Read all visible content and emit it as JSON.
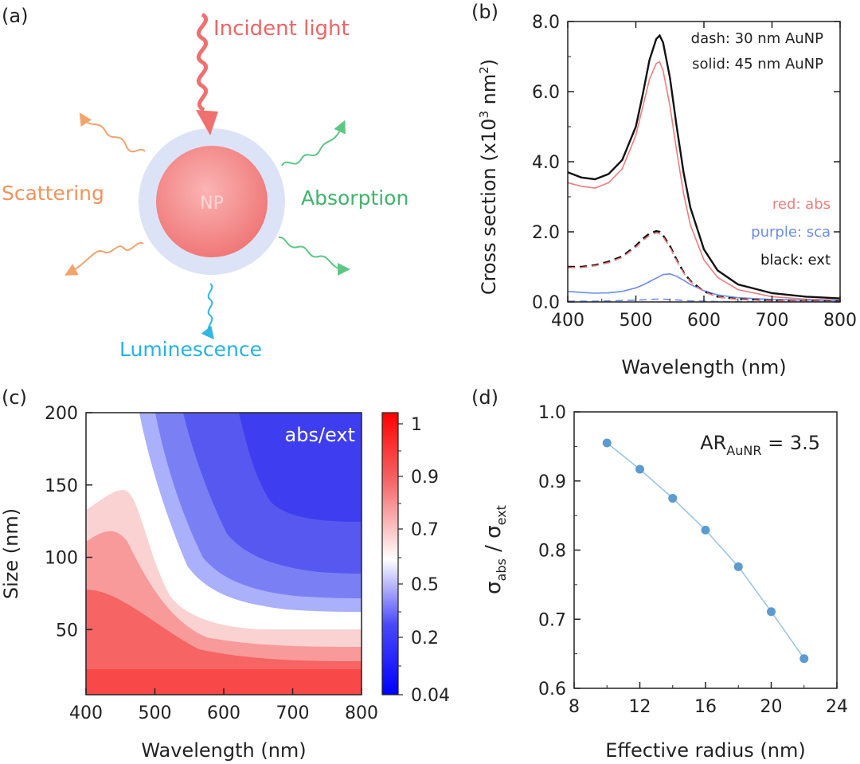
{
  "figure": {
    "panel_a": {
      "letter": "(a)",
      "incident": "Incident light",
      "scattering": "Scattering",
      "absorption": "Absorption",
      "luminescence": "Luminescence",
      "np": "NP"
    },
    "panel_b": {
      "letter": "(b)"
    },
    "panel_c": {
      "letter": "(c)"
    },
    "panel_d": {
      "letter": "(d)"
    }
  },
  "chart_data": [
    {
      "panel": "b",
      "type": "line",
      "xlabel": "Wavelength (nm)",
      "ylabel": "Cross section (x10",
      "ylabel_sup": "3",
      "ylabel_tail": " nm",
      "ylabel_sup2": "2",
      "ylabel_end": ")",
      "xlim": [
        400,
        800
      ],
      "ylim": [
        0,
        8
      ],
      "xticks": [
        400,
        500,
        600,
        700,
        800
      ],
      "xtick_labels": [
        "400",
        "500",
        "600",
        "700",
        "800"
      ],
      "yticks": [
        0,
        2,
        4,
        6,
        8
      ],
      "ytick_labels": [
        "0.0",
        "2.0",
        "4.0",
        "6.0",
        "8.0"
      ],
      "annotations": {
        "dash": "dash: 30 nm AuNP",
        "solid": "solid: 45 nm AuNP",
        "red": "red: abs",
        "purple": "purple: sca",
        "black": "black: ext"
      },
      "colors": {
        "abs": "#f07c7c",
        "sca": "#6a8de8",
        "ext": "#111111"
      },
      "x": [
        400,
        420,
        440,
        460,
        480,
        500,
        510,
        520,
        530,
        535,
        540,
        550,
        560,
        570,
        580,
        600,
        620,
        650,
        700,
        750,
        800
      ],
      "series": [
        {
          "key": "ext45",
          "style": "solid",
          "color": "ext",
          "values": [
            3.7,
            3.55,
            3.5,
            3.65,
            4.05,
            5.0,
            5.9,
            6.9,
            7.5,
            7.6,
            7.4,
            6.4,
            5.0,
            3.7,
            2.7,
            1.5,
            0.9,
            0.5,
            0.25,
            0.15,
            0.1
          ]
        },
        {
          "key": "abs45",
          "style": "solid",
          "color": "abs",
          "values": [
            3.4,
            3.3,
            3.25,
            3.4,
            3.8,
            4.75,
            5.55,
            6.35,
            6.8,
            6.85,
            6.6,
            5.6,
            4.3,
            3.1,
            2.2,
            1.2,
            0.7,
            0.35,
            0.15,
            0.08,
            0.05
          ]
        },
        {
          "key": "sca45",
          "style": "solid",
          "color": "sca",
          "values": [
            0.3,
            0.27,
            0.25,
            0.26,
            0.3,
            0.4,
            0.48,
            0.58,
            0.68,
            0.73,
            0.78,
            0.8,
            0.73,
            0.62,
            0.5,
            0.32,
            0.2,
            0.12,
            0.07,
            0.05,
            0.04
          ]
        },
        {
          "key": "ext30",
          "style": "dash",
          "color": "ext",
          "values": [
            1.0,
            1.0,
            1.05,
            1.15,
            1.3,
            1.6,
            1.8,
            1.95,
            2.02,
            2.0,
            1.9,
            1.6,
            1.2,
            0.85,
            0.6,
            0.3,
            0.15,
            0.08,
            0.04,
            0.02,
            0.02
          ]
        },
        {
          "key": "abs30",
          "style": "dash",
          "color": "abs",
          "values": [
            0.98,
            0.98,
            1.03,
            1.12,
            1.27,
            1.56,
            1.75,
            1.9,
            1.97,
            1.95,
            1.86,
            1.56,
            1.17,
            0.83,
            0.58,
            0.29,
            0.14,
            0.07,
            0.03,
            0.02,
            0.01
          ]
        },
        {
          "key": "sca30",
          "style": "dash",
          "color": "sca",
          "values": [
            0.02,
            0.02,
            0.02,
            0.03,
            0.04,
            0.05,
            0.06,
            0.07,
            0.08,
            0.08,
            0.08,
            0.07,
            0.06,
            0.04,
            0.03,
            0.02,
            0.01,
            0.01,
            0.0,
            0.0,
            0.0
          ]
        }
      ]
    },
    {
      "panel": "c",
      "type": "heatmap",
      "xlabel": "Wavelength (nm)",
      "ylabel": "Size (nm)",
      "label": "abs/ext",
      "xlim": [
        400,
        800
      ],
      "ylim": [
        5,
        200
      ],
      "xticks": [
        400,
        500,
        600,
        700,
        800
      ],
      "xtick_labels": [
        "400",
        "500",
        "600",
        "700",
        "800"
      ],
      "yticks": [
        50,
        100,
        150,
        200
      ],
      "ytick_labels": [
        "50",
        "100",
        "150",
        "200"
      ],
      "colorbar_ticks": [
        0.04,
        0.2,
        0.5,
        0.7,
        0.9,
        1
      ],
      "colorbar_labels": [
        "0.04",
        "0.2",
        "0.5",
        "0.7",
        "0.9",
        "1"
      ],
      "colormap": [
        "#0000ff",
        "#ffffff",
        "#ff0000"
      ]
    },
    {
      "panel": "d",
      "type": "scatter",
      "xlabel": "Effective radius (nm)",
      "ylabel_main": "σ",
      "ylabel_sub1": "abs",
      "ylabel_mid": " / σ",
      "ylabel_sub2": "ext",
      "annotation_main": "AR",
      "annotation_sub": "AuNR",
      "annotation_tail": " = 3.5",
      "xlim": [
        8,
        24
      ],
      "ylim": [
        0.6,
        1.0
      ],
      "xticks": [
        8,
        12,
        16,
        20,
        24
      ],
      "xtick_labels": [
        "8",
        "12",
        "16",
        "20",
        "24"
      ],
      "yticks": [
        0.6,
        0.7,
        0.8,
        0.9,
        1.0
      ],
      "ytick_labels": [
        "0.6",
        "0.7",
        "0.8",
        "0.9",
        "1.0"
      ],
      "color": "#5b9bd0",
      "x": [
        10,
        12,
        14,
        16,
        18,
        20,
        22
      ],
      "y": [
        0.955,
        0.917,
        0.875,
        0.829,
        0.776,
        0.711,
        0.643
      ]
    }
  ]
}
